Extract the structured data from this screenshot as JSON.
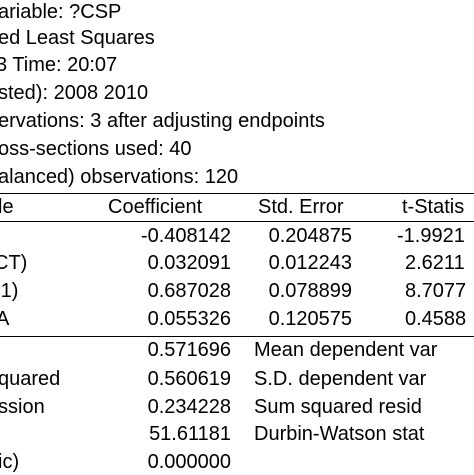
{
  "header": {
    "line1": "ariable: ?CSP",
    "line2": "ed Least Squares",
    "line3": "3   Time: 20:07",
    "line4": "sted): 2008 2010",
    "line5": "ervations: 3 after adjusting endpoints",
    "line6": "oss-sections used: 40",
    "line7": "alanced) observations: 120"
  },
  "table": {
    "columns": {
      "variable": "le",
      "coefficient": "Coefficient",
      "stderr": "Std. Error",
      "tstat": "t-Statis"
    },
    "rows": [
      {
        "var": "",
        "coef": "-0.408142",
        "se": "0.204875",
        "t": "-1.9921"
      },
      {
        "var": "CT)",
        "coef": "0.032091",
        "se": "0.012243",
        "t": "2.6211"
      },
      {
        "var": "-1)",
        "coef": "0.687028",
        "se": "0.078899",
        "t": "8.7077"
      },
      {
        "var": "A",
        "coef": "0.055326",
        "se": "0.120575",
        "t": "0.4588"
      }
    ]
  },
  "stats": [
    {
      "label": "",
      "value": "0.571696",
      "label2": "Mean dependent var"
    },
    {
      "label": "quared",
      "value": "0.560619",
      "label2": "S.D. dependent var"
    },
    {
      "label": "ssion",
      "value": "0.234228",
      "label2": "Sum squared resid"
    },
    {
      "label": "",
      "value": "51.61181",
      "label2": "Durbin-Watson stat"
    },
    {
      "label": "ic)",
      "value": "0.000000",
      "label2": ""
    }
  ]
}
